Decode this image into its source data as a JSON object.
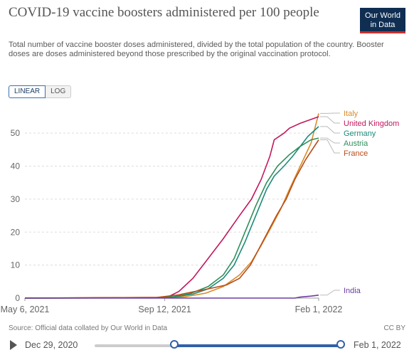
{
  "header": {
    "title": "COVID-19 vaccine boosters administered per 100 people",
    "subtitle": "Total number of vaccine booster doses administered, divided by the total population of the country. Booster doses are doses administered beyond those prescribed by the original vaccination protocol.",
    "logo_line1": "Our World",
    "logo_line2": "in Data"
  },
  "controls": {
    "linear_label": "LINEAR",
    "log_label": "LOG"
  },
  "footer": {
    "source": "Source: Official data collated by Our World in Data",
    "license": "CC BY"
  },
  "timeline": {
    "start_label": "Dec 29, 2020",
    "end_label": "Feb 1, 2022",
    "selection_start": "May 6, 2021",
    "selection_end": "Feb 1, 2022"
  },
  "colors": {
    "Italy": "#d98c2b",
    "United Kingdom": "#c1185f",
    "Germany": "#1b8a7a",
    "Austria": "#2f8e5b",
    "France": "#b84c1a",
    "India": "#6b3fa0",
    "grid": "#dddddd",
    "axis_text": "#666666"
  },
  "chart_data": {
    "type": "line",
    "xlim": [
      "2021-05-06",
      "2022-02-01"
    ],
    "ylim": [
      0,
      55
    ],
    "yticks": [
      0,
      10,
      20,
      30,
      40,
      50
    ],
    "xtick_labels": [
      "May 6, 2021",
      "Sep 12, 2021",
      "Feb 1, 2022"
    ],
    "xtick_dates": [
      "2021-05-06",
      "2021-09-12",
      "2022-02-01"
    ],
    "grid": true,
    "series": [
      {
        "name": "Italy",
        "points": [
          [
            "2021-05-06",
            0
          ],
          [
            "2021-09-19",
            0.1
          ],
          [
            "2021-10-01",
            0.4
          ],
          [
            "2021-10-20",
            1.5
          ],
          [
            "2021-11-05",
            3.5
          ],
          [
            "2021-11-20",
            7
          ],
          [
            "2021-12-01",
            11
          ],
          [
            "2021-12-10",
            16
          ],
          [
            "2021-12-20",
            22
          ],
          [
            "2021-12-28",
            27
          ],
          [
            "2022-01-05",
            33
          ],
          [
            "2022-01-15",
            40
          ],
          [
            "2022-01-25",
            47
          ],
          [
            "2022-02-01",
            56
          ]
        ]
      },
      {
        "name": "United Kingdom",
        "points": [
          [
            "2021-05-06",
            0
          ],
          [
            "2021-09-14",
            0.2
          ],
          [
            "2021-09-25",
            2
          ],
          [
            "2021-10-08",
            6
          ],
          [
            "2021-10-22",
            12
          ],
          [
            "2021-11-05",
            18
          ],
          [
            "2021-11-20",
            25
          ],
          [
            "2021-12-01",
            30
          ],
          [
            "2021-12-10",
            36
          ],
          [
            "2021-12-18",
            43
          ],
          [
            "2021-12-22",
            48
          ],
          [
            "2021-12-31",
            50
          ],
          [
            "2022-01-05",
            51.5
          ],
          [
            "2022-01-15",
            53
          ],
          [
            "2022-02-01",
            55
          ]
        ]
      },
      {
        "name": "Germany",
        "points": [
          [
            "2021-05-06",
            0
          ],
          [
            "2021-09-01",
            0.1
          ],
          [
            "2021-09-20",
            0.3
          ],
          [
            "2021-10-08",
            1.2
          ],
          [
            "2021-10-22",
            2.8
          ],
          [
            "2021-11-05",
            6
          ],
          [
            "2021-11-15",
            10
          ],
          [
            "2021-11-25",
            17
          ],
          [
            "2021-12-05",
            25
          ],
          [
            "2021-12-15",
            33
          ],
          [
            "2021-12-22",
            37
          ],
          [
            "2021-12-31",
            40
          ],
          [
            "2022-01-08",
            43
          ],
          [
            "2022-01-15",
            46
          ],
          [
            "2022-01-22",
            49
          ],
          [
            "2022-02-01",
            52
          ]
        ]
      },
      {
        "name": "Austria",
        "points": [
          [
            "2021-05-06",
            0
          ],
          [
            "2021-09-01",
            0.1
          ],
          [
            "2021-09-20",
            0.4
          ],
          [
            "2021-10-05",
            1.3
          ],
          [
            "2021-10-22",
            3.5
          ],
          [
            "2021-11-05",
            7
          ],
          [
            "2021-11-15",
            12
          ],
          [
            "2021-11-25",
            20
          ],
          [
            "2021-12-05",
            28
          ],
          [
            "2021-12-15",
            35
          ],
          [
            "2021-12-25",
            40
          ],
          [
            "2022-01-05",
            43.5
          ],
          [
            "2022-01-15",
            46
          ],
          [
            "2022-01-25",
            48
          ],
          [
            "2022-02-01",
            48.5
          ]
        ]
      },
      {
        "name": "France",
        "points": [
          [
            "2021-05-06",
            0
          ],
          [
            "2021-09-05",
            0.2
          ],
          [
            "2021-09-25",
            1
          ],
          [
            "2021-10-10",
            2
          ],
          [
            "2021-10-25",
            3
          ],
          [
            "2021-11-08",
            4
          ],
          [
            "2021-11-20",
            6
          ],
          [
            "2021-11-30",
            10
          ],
          [
            "2021-12-08",
            15
          ],
          [
            "2021-12-16",
            20
          ],
          [
            "2021-12-24",
            25
          ],
          [
            "2022-01-02",
            30
          ],
          [
            "2022-01-10",
            36
          ],
          [
            "2022-01-20",
            42
          ],
          [
            "2022-02-01",
            48
          ]
        ]
      },
      {
        "name": "India",
        "points": [
          [
            "2021-05-06",
            0
          ],
          [
            "2022-01-10",
            0
          ],
          [
            "2022-01-15",
            0.3
          ],
          [
            "2022-01-25",
            0.6
          ],
          [
            "2022-02-01",
            0.9
          ]
        ]
      }
    ],
    "legend": {
      "placement": "right",
      "order": [
        "Italy",
        "United Kingdom",
        "Germany",
        "Austria",
        "France",
        "India"
      ]
    }
  }
}
